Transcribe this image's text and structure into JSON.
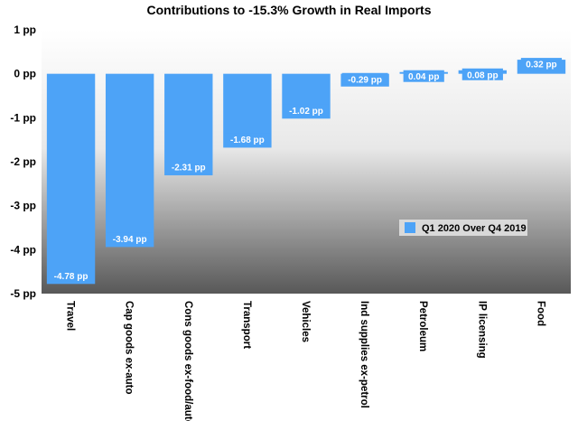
{
  "chart_data": {
    "type": "bar",
    "title": "Contributions to -15.3% Growth in Real Imports",
    "categories": [
      "Travel",
      "Cap goods ex-auto",
      "Cons goods ex-food/auto",
      "Transport",
      "Vehicles",
      "Ind supplies ex-petrol",
      "Petroleum",
      "IP licensing",
      "Food"
    ],
    "series": [
      {
        "name": "Q1 2020 Over Q4 2019",
        "values": [
          -4.78,
          -3.94,
          -2.31,
          -1.68,
          -1.02,
          -0.29,
          0.04,
          0.08,
          0.32
        ],
        "labels": [
          "-4.78 pp",
          "-3.94 pp",
          "-2.31 pp",
          "-1.68 pp",
          "-1.02 pp",
          "-0.29 pp",
          "0.04 pp",
          "0.08 pp",
          "0.32 pp"
        ]
      }
    ],
    "ylim": [
      -5,
      1
    ],
    "yticks": [
      1,
      0,
      -1,
      -2,
      -3,
      -4,
      -5
    ],
    "ytick_labels": [
      "1 pp",
      "0 pp",
      "-1 pp",
      "-2 pp",
      "-3 pp",
      "-4 pp",
      "-5 pp"
    ],
    "xlabel": "",
    "ylabel": "",
    "legend_position": "right-middle",
    "grid": false,
    "colors": {
      "bar": "#4da3f7",
      "plot_bg_top": "#ffffff",
      "plot_bg_bottom": "#5a5a5a",
      "legend_bg": "#d9d9d9"
    }
  }
}
